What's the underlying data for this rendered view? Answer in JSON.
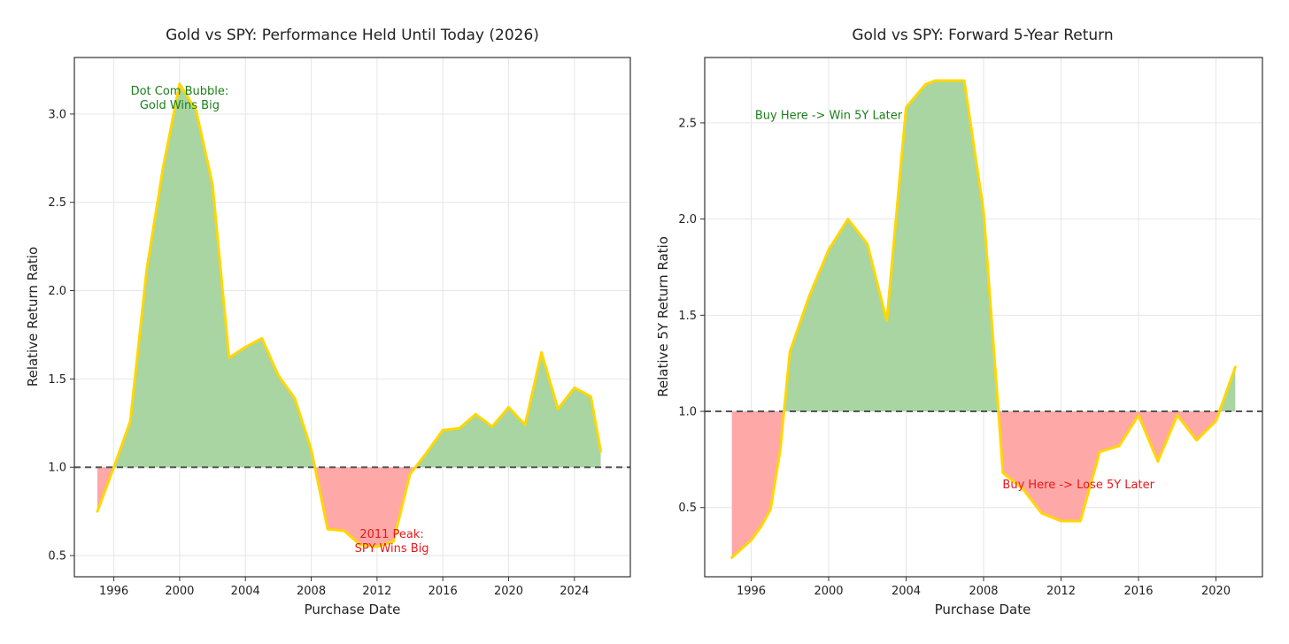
{
  "colors": {
    "line": "#FFD700",
    "win_fill": "#A8D5A2",
    "lose_fill": "#FFA8A8",
    "win_text": "#1a7f1a",
    "lose_text": "#e8181a",
    "baseline": "#555555",
    "grid": "#e6e6e6",
    "frame": "#333333"
  },
  "chart_data": [
    {
      "type": "area",
      "title": "Gold vs SPY: Performance Held Until Today (2026)",
      "xlabel": "Purchase Date",
      "ylabel": "Relative Return Ratio",
      "xlim": [
        1993.6,
        2027.4
      ],
      "ylim": [
        0.38,
        3.32
      ],
      "xticks": [
        1996,
        2000,
        2004,
        2008,
        2012,
        2016,
        2020,
        2024
      ],
      "yticks": [
        0.5,
        1.0,
        1.5,
        2.0,
        2.5,
        3.0
      ],
      "ytick_labels": [
        "0.5",
        "1.0",
        "1.5",
        "2.0",
        "2.5",
        "3.0"
      ],
      "baseline": 1.0,
      "grid": true,
      "x": [
        1995,
        1996,
        1997,
        1998,
        1999,
        2000,
        2001,
        2002,
        2003,
        2004,
        2005,
        2006,
        2007,
        2008,
        2009,
        2010,
        2011,
        2012,
        2013,
        2014,
        2015,
        2016,
        2017,
        2018,
        2019,
        2020,
        2021,
        2022,
        2023,
        2024,
        2025,
        2025.6
      ],
      "values": [
        0.75,
        1.0,
        1.26,
        2.12,
        2.7,
        3.17,
        3.02,
        2.6,
        1.62,
        1.68,
        1.73,
        1.52,
        1.39,
        1.1,
        0.65,
        0.64,
        0.56,
        0.55,
        0.58,
        0.96,
        1.08,
        1.21,
        1.22,
        1.3,
        1.23,
        1.34,
        1.24,
        1.65,
        1.33,
        1.45,
        1.4,
        1.09
      ],
      "annotations": [
        {
          "lines": [
            "Dot Com Bubble:",
            "Gold Wins Big"
          ],
          "x": 2000,
          "y": 3.07,
          "kind": "win"
        },
        {
          "lines": [
            "2011 Peak:",
            "SPY Wins Big"
          ],
          "x": 2012.9,
          "y": 0.56,
          "kind": "lose"
        }
      ]
    },
    {
      "type": "area",
      "title": "Gold vs SPY: Forward 5-Year Return",
      "xlabel": "Purchase Date",
      "ylabel": "Relative 5Y Return Ratio",
      "xlim": [
        1993.6,
        2022.4
      ],
      "ylim": [
        0.14,
        2.84
      ],
      "xticks": [
        1996,
        2000,
        2004,
        2008,
        2012,
        2016,
        2020
      ],
      "yticks": [
        0.5,
        1.0,
        1.5,
        2.0,
        2.5
      ],
      "ytick_labels": [
        "0.5",
        "1.0",
        "1.5",
        "2.0",
        "2.5"
      ],
      "baseline": 1.0,
      "grid": true,
      "x": [
        1995,
        1996,
        1996.5,
        1997,
        1997.5,
        1998,
        1999,
        2000,
        2001,
        2002,
        2003,
        2004,
        2005,
        2005.5,
        2006,
        2007,
        2008,
        2009,
        2010,
        2011,
        2012,
        2013,
        2014,
        2015,
        2016,
        2017,
        2018,
        2019,
        2020,
        2021
      ],
      "values": [
        0.24,
        0.33,
        0.4,
        0.49,
        0.8,
        1.31,
        1.6,
        1.84,
        2.0,
        1.87,
        1.47,
        2.58,
        2.7,
        2.72,
        2.72,
        2.72,
        2.04,
        0.68,
        0.6,
        0.47,
        0.43,
        0.43,
        0.79,
        0.82,
        0.98,
        0.74,
        0.98,
        0.85,
        0.95,
        1.23
      ],
      "annotations": [
        {
          "lines": [
            "Buy Here -> Win 5Y Later"
          ],
          "x": 2000,
          "y": 2.52,
          "kind": "win"
        },
        {
          "lines": [
            "Buy Here -> Lose 5Y Later"
          ],
          "x": 2012.9,
          "y": 0.6,
          "kind": "lose"
        }
      ]
    }
  ]
}
